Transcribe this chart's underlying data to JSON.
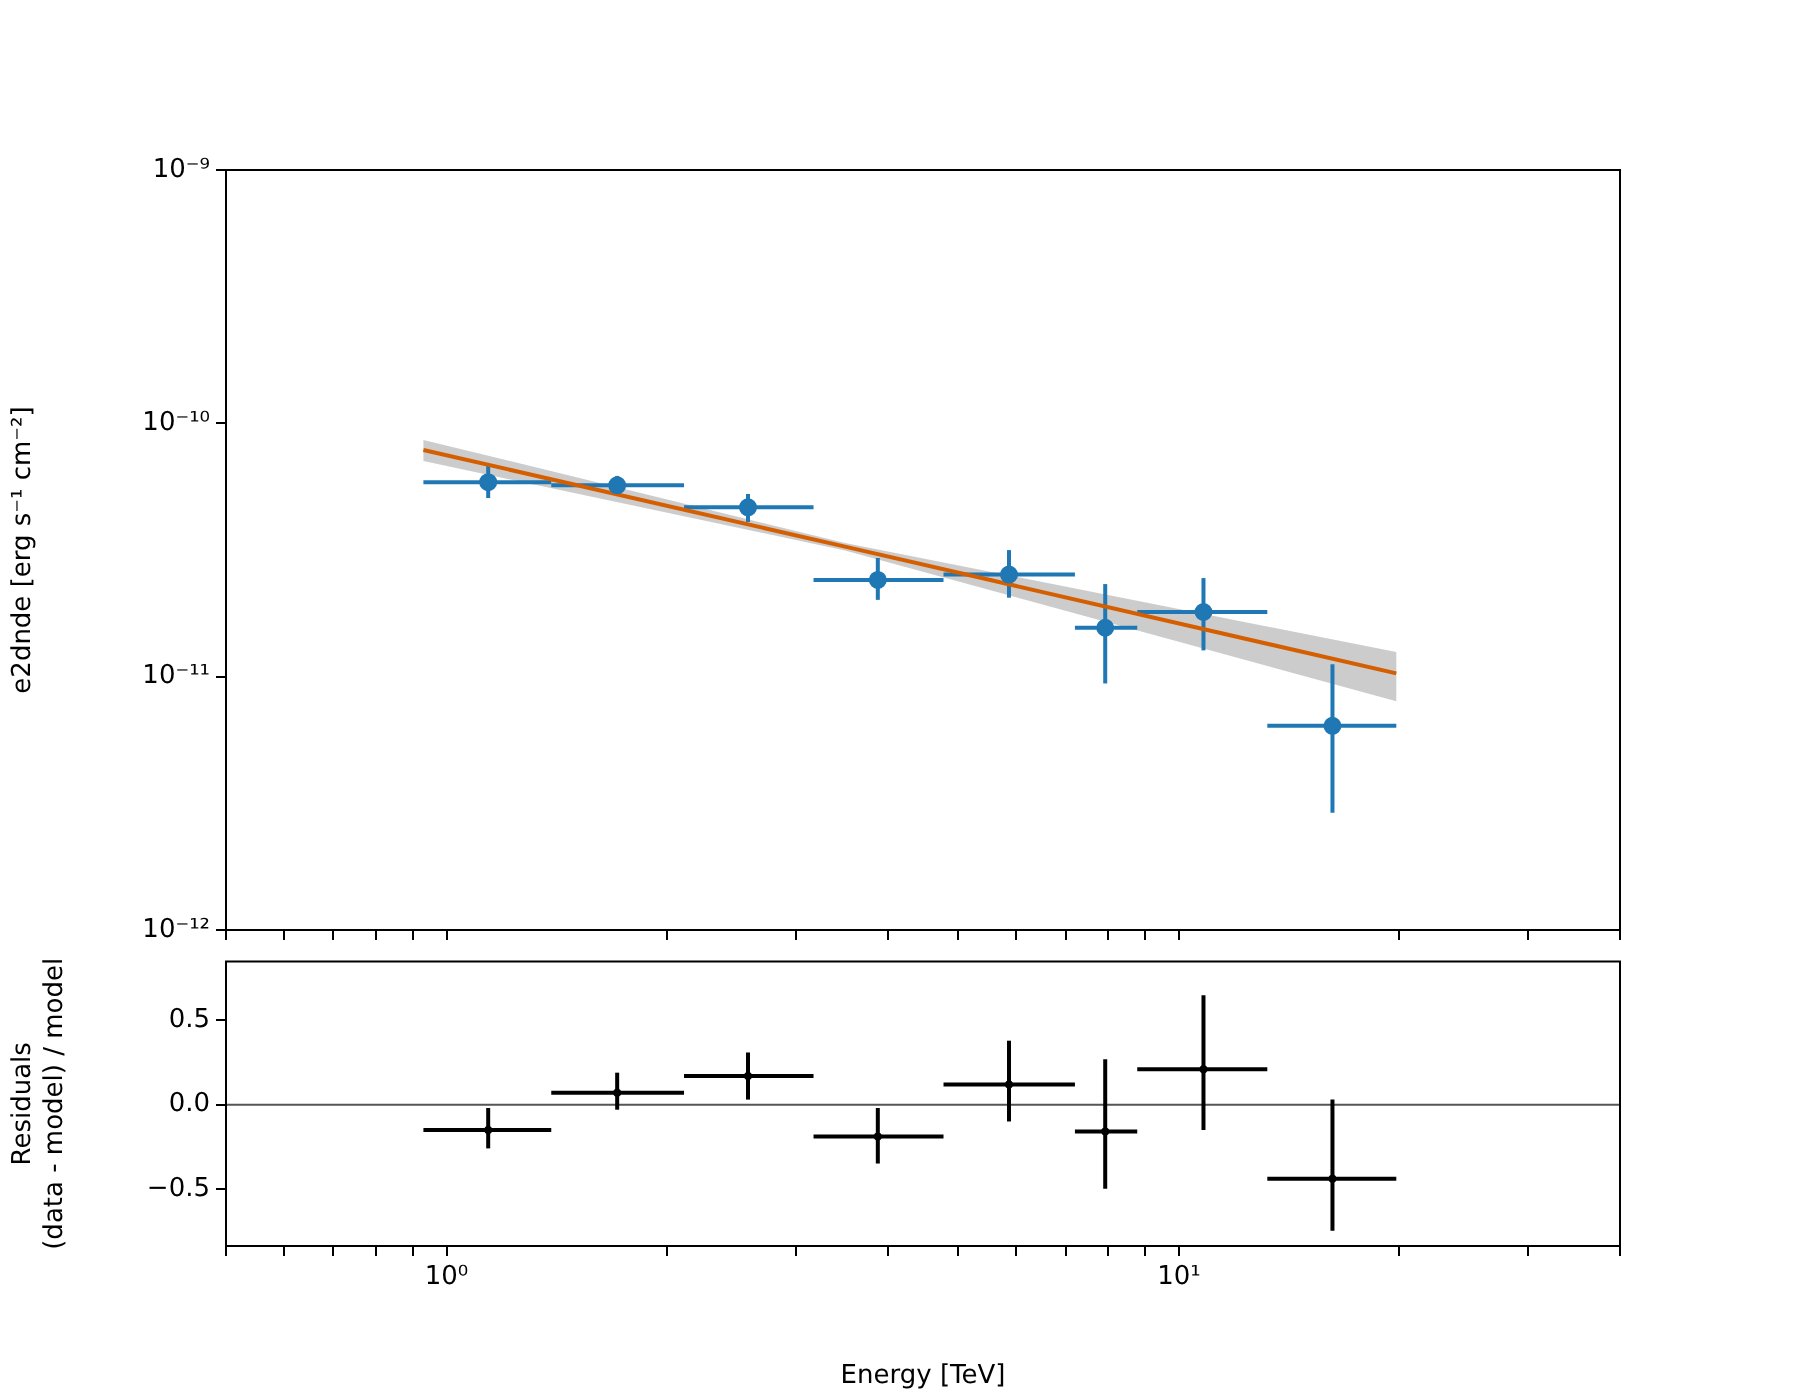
{
  "chart_data": [
    {
      "type": "scatter",
      "ylabel": "e2dnde [erg s⁻¹ cm⁻²]",
      "log": "xy",
      "xlim": [
        0.5,
        40
      ],
      "ylim": [
        1e-12,
        1e-09
      ],
      "xticks": [
        {
          "value": 0.5,
          "label": null
        },
        {
          "value": 0.6,
          "label": null
        },
        {
          "value": 0.7,
          "label": null
        },
        {
          "value": 0.8,
          "label": null
        },
        {
          "value": 0.9,
          "label": null
        },
        {
          "value": 1,
          "label": null
        },
        {
          "value": 2,
          "label": null
        },
        {
          "value": 3,
          "label": null
        },
        {
          "value": 4,
          "label": null
        },
        {
          "value": 5,
          "label": null
        },
        {
          "value": 6,
          "label": null
        },
        {
          "value": 7,
          "label": null
        },
        {
          "value": 8,
          "label": null
        },
        {
          "value": 9,
          "label": null
        },
        {
          "value": 10,
          "label": null
        },
        {
          "value": 20,
          "label": null
        },
        {
          "value": 30,
          "label": null
        },
        {
          "value": 40,
          "label": null
        }
      ],
      "yticks": [
        {
          "value": 1e-12,
          "label": "10⁻¹²"
        },
        {
          "value": 1e-11,
          "label": "10⁻¹¹"
        },
        {
          "value": 1e-10,
          "label": "10⁻¹⁰"
        },
        {
          "value": 1e-09,
          "label": "10⁻⁹"
        }
      ],
      "tick_labels": "y",
      "grid": false,
      "legend": false,
      "series": [
        {
          "marker": "circle",
          "color": "#1f77b4",
          "x": [
            1.14,
            1.71,
            2.58,
            3.88,
            5.86,
            7.93,
            10.8,
            16.2
          ],
          "values": [
            5.86e-11,
            5.69e-11,
            4.66e-11,
            2.41e-11,
            2.53e-11,
            1.56e-11,
            1.8e-11,
            6.4e-12
          ],
          "errors": [
            [
              5.07e-11,
              6.79e-11
            ],
            [
              5.26e-11,
              6.2e-11
            ],
            [
              4.08e-11,
              5.26e-11
            ],
            [
              2.01e-11,
              2.94e-11
            ],
            [
              2.05e-11,
              3.16e-11
            ],
            [
              9.4e-12,
              2.32e-11
            ],
            [
              1.27e-11,
              2.45e-11
            ],
            [
              2.9e-12,
              1.12e-11
            ]
          ],
          "xerrors": [
            [
              0.93,
              1.39
            ],
            [
              1.39,
              2.11
            ],
            [
              2.11,
              3.17
            ],
            [
              3.17,
              4.77
            ],
            [
              4.77,
              7.21
            ],
            [
              7.21,
              8.77
            ],
            [
              8.77,
              13.2
            ],
            [
              13.2,
              19.8
            ]
          ]
        },
        {
          "type": "line",
          "color": "#d55e00",
          "x": [
            0.93,
            3.5,
            19.8
          ],
          "values": [
            7.85e-11,
            3.26e-11,
            1.03e-11
          ],
          "lower": [
            7.1e-11,
            3.15e-11,
            8e-12
          ],
          "upper": [
            8.6e-11,
            3.37e-11,
            1.25e-11
          ]
        }
      ]
    },
    {
      "type": "scatter",
      "xlabel": "Energy [TeV]",
      "ylabel": "Residuals\n(data - model) / model",
      "log": "x",
      "xlim": [
        0.5,
        40
      ],
      "ylim": [
        -0.84,
        0.85
      ],
      "xticks": [
        {
          "value": 0.5,
          "label": null
        },
        {
          "value": 0.6,
          "label": null
        },
        {
          "value": 0.7,
          "label": null
        },
        {
          "value": 0.8,
          "label": null
        },
        {
          "value": 0.9,
          "label": null
        },
        {
          "value": 1,
          "label": "10⁰"
        },
        {
          "value": 2,
          "label": null
        },
        {
          "value": 3,
          "label": null
        },
        {
          "value": 4,
          "label": null
        },
        {
          "value": 5,
          "label": null
        },
        {
          "value": 6,
          "label": null
        },
        {
          "value": 7,
          "label": null
        },
        {
          "value": 8,
          "label": null
        },
        {
          "value": 9,
          "label": null
        },
        {
          "value": 10,
          "label": "10¹"
        },
        {
          "value": 20,
          "label": null
        },
        {
          "value": 30,
          "label": null
        },
        {
          "value": 40,
          "label": null
        }
      ],
      "yticks": [
        {
          "value": -0.5,
          "label": "−0.5"
        },
        {
          "value": 0,
          "label": "0.0"
        },
        {
          "value": 0.5,
          "label": "0.5"
        }
      ],
      "marker": "circle",
      "grid": false,
      "legend": false,
      "ref_lines": [
        {
          "axis": "y",
          "value": 0,
          "color": "#555555"
        }
      ],
      "series": [
        {
          "color": "#000000",
          "x": [
            1.14,
            1.71,
            2.58,
            3.88,
            5.86,
            7.93,
            10.8,
            16.2
          ],
          "values": [
            -0.15,
            0.07,
            0.17,
            -0.19,
            0.12,
            -0.16,
            0.21,
            -0.44
          ],
          "errors": [
            [
              -0.26,
              -0.02
            ],
            [
              -0.03,
              0.19
            ],
            [
              0.03,
              0.31
            ],
            [
              -0.35,
              -0.02
            ],
            [
              -0.1,
              0.38
            ],
            [
              -0.5,
              0.27
            ],
            [
              -0.15,
              0.65
            ],
            [
              -0.75,
              0.03
            ]
          ],
          "xerrors": [
            [
              0.93,
              1.39
            ],
            [
              1.39,
              2.11
            ],
            [
              2.11,
              3.17
            ],
            [
              3.17,
              4.77
            ],
            [
              4.77,
              7.21
            ],
            [
              7.21,
              8.77
            ],
            [
              8.77,
              13.2
            ],
            [
              13.2,
              19.8
            ]
          ]
        }
      ]
    }
  ]
}
